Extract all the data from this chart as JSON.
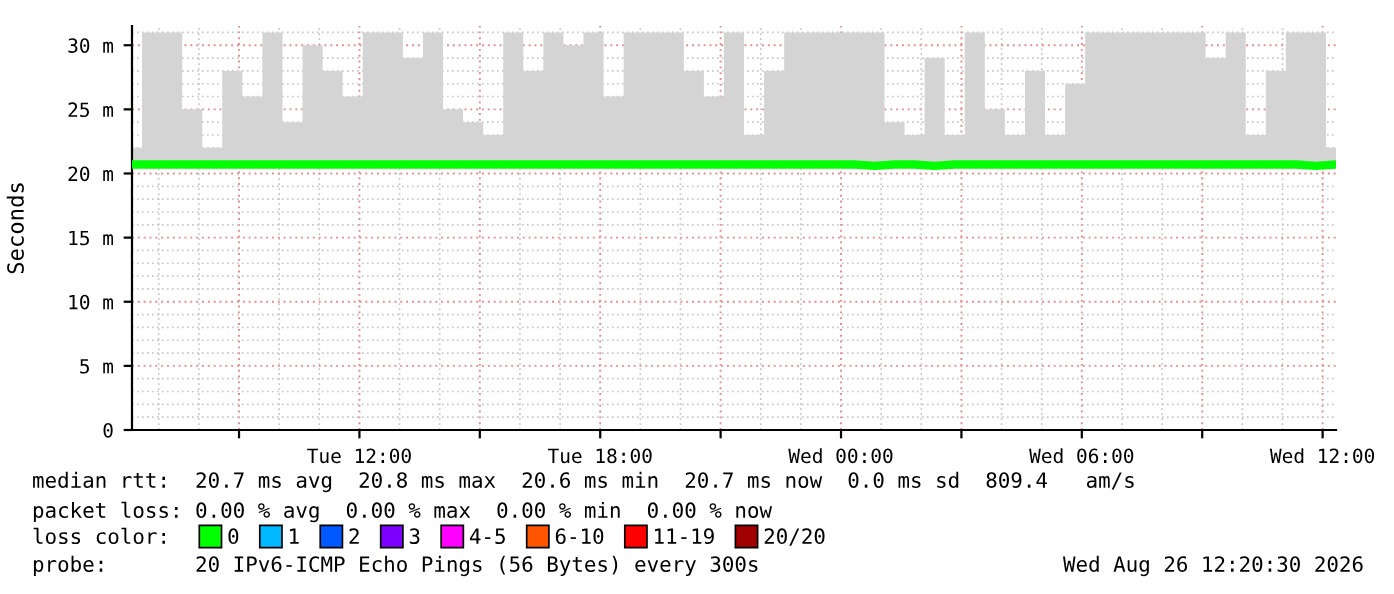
{
  "chart_data": {
    "type": "line",
    "ylabel": "Seconds",
    "x": [
      "2026-08-25T06:20",
      "2026-08-25T06:50",
      "2026-08-25T07:20",
      "2026-08-25T07:50",
      "2026-08-25T08:20",
      "2026-08-25T08:50",
      "2026-08-25T09:20",
      "2026-08-25T09:50",
      "2026-08-25T10:20",
      "2026-08-25T10:50",
      "2026-08-25T11:20",
      "2026-08-25T11:50",
      "2026-08-25T12:20",
      "2026-08-25T12:50",
      "2026-08-25T13:20",
      "2026-08-25T13:50",
      "2026-08-25T14:20",
      "2026-08-25T14:50",
      "2026-08-25T15:20",
      "2026-08-25T15:50",
      "2026-08-25T16:20",
      "2026-08-25T16:50",
      "2026-08-25T17:20",
      "2026-08-25T17:50",
      "2026-08-25T18:20",
      "2026-08-25T18:50",
      "2026-08-25T19:20",
      "2026-08-25T19:50",
      "2026-08-25T20:20",
      "2026-08-25T20:50",
      "2026-08-25T21:20",
      "2026-08-25T21:50",
      "2026-08-25T22:20",
      "2026-08-25T22:50",
      "2026-08-25T23:20",
      "2026-08-25T23:50",
      "2026-08-26T00:20",
      "2026-08-26T00:50",
      "2026-08-26T01:20",
      "2026-08-26T01:50",
      "2026-08-26T02:20",
      "2026-08-26T02:50",
      "2026-08-26T03:20",
      "2026-08-26T03:50",
      "2026-08-26T04:20",
      "2026-08-26T04:50",
      "2026-08-26T05:20",
      "2026-08-26T05:50",
      "2026-08-26T06:20",
      "2026-08-26T06:50",
      "2026-08-26T07:20",
      "2026-08-26T07:50",
      "2026-08-26T08:20",
      "2026-08-26T08:50",
      "2026-08-26T09:20",
      "2026-08-26T09:50",
      "2026-08-26T10:20",
      "2026-08-26T10:50",
      "2026-08-26T11:20",
      "2026-08-26T11:50",
      "2026-08-26T12:20"
    ],
    "series": [
      {
        "name": "0",
        "color": "#00ff00",
        "values": [
          20.7,
          20.7,
          20.7,
          20.7,
          20.7,
          20.7,
          20.7,
          20.7,
          20.7,
          20.7,
          20.7,
          20.7,
          20.7,
          20.7,
          20.7,
          20.7,
          20.7,
          20.7,
          20.7,
          20.7,
          20.7,
          20.7,
          20.7,
          20.7,
          20.7,
          20.7,
          20.7,
          20.7,
          20.7,
          20.7,
          20.7,
          20.7,
          20.7,
          20.7,
          20.7,
          20.7,
          20.7,
          20.6,
          20.7,
          20.7,
          20.6,
          20.7,
          20.7,
          20.7,
          20.7,
          20.7,
          20.7,
          20.7,
          20.7,
          20.7,
          20.7,
          20.7,
          20.7,
          20.7,
          20.7,
          20.7,
          20.7,
          20.7,
          20.7,
          20.6,
          20.7
        ],
        "lower": [
          20.6,
          20.6,
          20.6,
          20.6,
          20.6,
          20.6,
          20.6,
          20.6,
          20.6,
          20.6,
          20.6,
          20.6,
          20.6,
          20.6,
          20.6,
          20.6,
          20.6,
          20.6,
          20.6,
          20.6,
          20.6,
          20.6,
          20.6,
          20.6,
          20.6,
          20.6,
          20.6,
          20.6,
          20.6,
          20.6,
          20.6,
          20.6,
          20.6,
          20.6,
          20.6,
          20.6,
          20.6,
          20.6,
          20.6,
          20.6,
          20.6,
          20.6,
          20.6,
          20.6,
          20.6,
          20.6,
          20.6,
          20.6,
          20.6,
          20.6,
          20.6,
          20.6,
          20.6,
          20.6,
          20.6,
          20.6,
          20.6,
          20.6,
          20.6,
          20.6,
          20.6
        ],
        "upper": [
          22,
          31,
          31,
          25,
          22,
          28,
          26,
          31,
          24,
          30,
          28,
          26,
          31,
          31,
          29,
          31,
          25,
          24,
          23,
          31,
          28,
          31,
          30,
          31,
          26,
          31,
          31,
          31,
          28,
          26,
          31,
          23,
          28,
          31,
          31,
          31,
          31,
          31,
          24,
          23,
          29,
          23,
          31,
          25,
          23,
          28,
          23,
          27,
          31,
          31,
          31,
          31,
          31,
          31,
          29,
          31,
          23,
          28,
          31,
          31,
          22
        ]
      },
      {
        "name": "1",
        "color": "#00b8ff",
        "values": [
          null,
          null,
          null,
          null,
          null,
          null,
          null,
          null,
          null,
          null,
          null,
          null,
          null,
          null,
          null,
          null,
          null,
          null,
          null,
          null,
          null,
          null,
          null,
          null,
          null,
          null,
          null,
          null,
          null,
          null,
          null,
          null,
          null,
          null,
          null,
          null,
          null,
          null,
          null,
          null,
          null,
          null,
          null,
          null,
          null,
          null,
          null,
          null,
          null,
          null,
          null,
          null,
          null,
          null,
          null,
          null,
          null,
          null,
          null,
          null,
          null
        ]
      },
      {
        "name": "2",
        "color": "#0059ff",
        "values": [
          null,
          null,
          null,
          null,
          null,
          null,
          null,
          null,
          null,
          null,
          null,
          null,
          null,
          null,
          null,
          null,
          null,
          null,
          null,
          null,
          null,
          null,
          null,
          null,
          null,
          null,
          null,
          null,
          null,
          null,
          null,
          null,
          null,
          null,
          null,
          null,
          null,
          null,
          null,
          null,
          null,
          null,
          null,
          null,
          null,
          null,
          null,
          null,
          null,
          null,
          null,
          null,
          null,
          null,
          null,
          null,
          null,
          null,
          null,
          null,
          null
        ]
      },
      {
        "name": "3",
        "color": "#7e00ff",
        "values": [
          null,
          null,
          null,
          null,
          null,
          null,
          null,
          null,
          null,
          null,
          null,
          null,
          null,
          null,
          null,
          null,
          null,
          null,
          null,
          null,
          null,
          null,
          null,
          null,
          null,
          null,
          null,
          null,
          null,
          null,
          null,
          null,
          null,
          null,
          null,
          null,
          null,
          null,
          null,
          null,
          null,
          null,
          null,
          null,
          null,
          null,
          null,
          null,
          null,
          null,
          null,
          null,
          null,
          null,
          null,
          null,
          null,
          null,
          null,
          null,
          null
        ]
      },
      {
        "name": "4-5",
        "color": "#ff00ff",
        "values": [
          null,
          null,
          null,
          null,
          null,
          null,
          null,
          null,
          null,
          null,
          null,
          null,
          null,
          null,
          null,
          null,
          null,
          null,
          null,
          null,
          null,
          null,
          null,
          null,
          null,
          null,
          null,
          null,
          null,
          null,
          null,
          null,
          null,
          null,
          null,
          null,
          null,
          null,
          null,
          null,
          null,
          null,
          null,
          null,
          null,
          null,
          null,
          null,
          null,
          null,
          null,
          null,
          null,
          null,
          null,
          null,
          null,
          null,
          null,
          null,
          null
        ]
      },
      {
        "name": "6-10",
        "color": "#ff5500",
        "values": [
          null,
          null,
          null,
          null,
          null,
          null,
          null,
          null,
          null,
          null,
          null,
          null,
          null,
          null,
          null,
          null,
          null,
          null,
          null,
          null,
          null,
          null,
          null,
          null,
          null,
          null,
          null,
          null,
          null,
          null,
          null,
          null,
          null,
          null,
          null,
          null,
          null,
          null,
          null,
          null,
          null,
          null,
          null,
          null,
          null,
          null,
          null,
          null,
          null,
          null,
          null,
          null,
          null,
          null,
          null,
          null,
          null,
          null,
          null,
          null,
          null
        ]
      },
      {
        "name": "11-19",
        "color": "#ff0000",
        "values": [
          null,
          null,
          null,
          null,
          null,
          null,
          null,
          null,
          null,
          null,
          null,
          null,
          null,
          null,
          null,
          null,
          null,
          null,
          null,
          null,
          null,
          null,
          null,
          null,
          null,
          null,
          null,
          null,
          null,
          null,
          null,
          null,
          null,
          null,
          null,
          null,
          null,
          null,
          null,
          null,
          null,
          null,
          null,
          null,
          null,
          null,
          null,
          null,
          null,
          null,
          null,
          null,
          null,
          null,
          null,
          null,
          null,
          null,
          null,
          null,
          null
        ]
      },
      {
        "name": "20/20",
        "color": "#a10000",
        "values": [
          null,
          null,
          null,
          null,
          null,
          null,
          null,
          null,
          null,
          null,
          null,
          null,
          null,
          null,
          null,
          null,
          null,
          null,
          null,
          null,
          null,
          null,
          null,
          null,
          null,
          null,
          null,
          null,
          null,
          null,
          null,
          null,
          null,
          null,
          null,
          null,
          null,
          null,
          null,
          null,
          null,
          null,
          null,
          null,
          null,
          null,
          null,
          null,
          null,
          null,
          null,
          null,
          null,
          null,
          null,
          null,
          null,
          null,
          null,
          null,
          null
        ]
      }
    ],
    "xlim": [
      "2026-08-25T06:20",
      "2026-08-26T12:20"
    ],
    "xticks": [
      {
        "value": "2026-08-25T09:00",
        "label": null
      },
      {
        "value": "2026-08-25T12:00",
        "label": "Tue 12:00"
      },
      {
        "value": "2026-08-25T15:00",
        "label": null
      },
      {
        "value": "2026-08-25T18:00",
        "label": "Tue 18:00"
      },
      {
        "value": "2026-08-25T21:00",
        "label": null
      },
      {
        "value": "2026-08-26T00:00",
        "label": "Wed 00:00"
      },
      {
        "value": "2026-08-26T03:00",
        "label": null
      },
      {
        "value": "2026-08-26T06:00",
        "label": "Wed 06:00"
      },
      {
        "value": "2026-08-26T09:00",
        "label": null
      },
      {
        "value": "2026-08-26T12:00",
        "label": "Wed 12:00"
      }
    ],
    "ylim": [
      0,
      31.5
    ],
    "yticks": [
      0,
      {
        "value": 5,
        "label": "5 m"
      },
      {
        "value": 10,
        "label": "10 m"
      },
      {
        "value": 15,
        "label": "15 m"
      },
      {
        "value": 20,
        "label": "20 m"
      },
      {
        "value": 25,
        "label": "25 m"
      },
      {
        "value": 30,
        "label": "30 m"
      }
    ],
    "grid": true,
    "legend": "bottom",
    "legend_title": "loss color:",
    "line_style": "solid",
    "annotations": [
      "median rtt:  20.7 ms avg  20.8 ms max  20.6 ms min  20.7 ms now  0.0 ms sd  809.4   am/s",
      "packet loss: 0.00 % avg  0.00 % max  0.00 % min  0.00 % now",
      "probe:       20 IPv6-ICMP Echo Pings (56 Bytes) every 300s",
      "Wed Aug 26 12:20:30 2026"
    ]
  }
}
